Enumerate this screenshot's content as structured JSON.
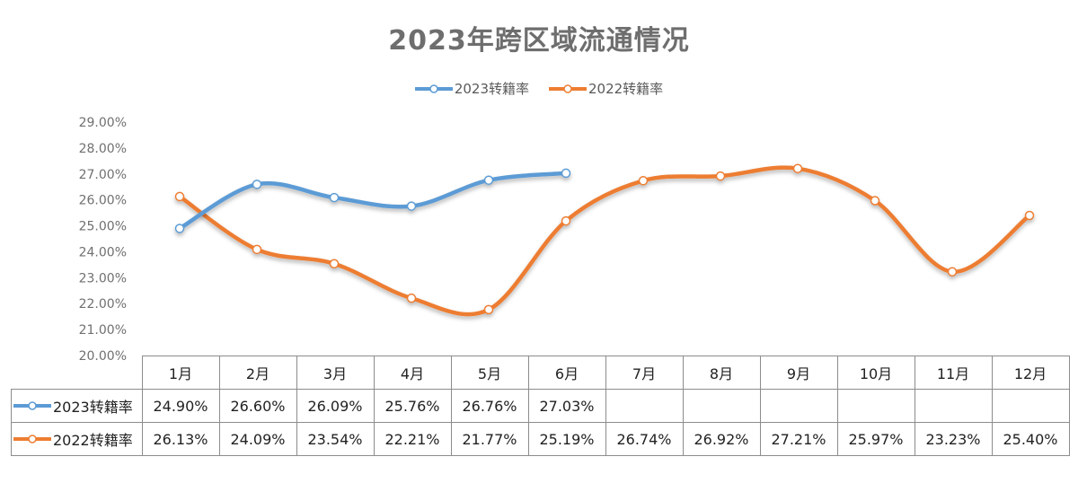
{
  "chart_data": {
    "type": "line",
    "title": "2023年跨区域流通情况",
    "categories": [
      "1月",
      "2月",
      "3月",
      "4月",
      "5月",
      "6月",
      "7月",
      "8月",
      "9月",
      "10月",
      "11月",
      "12月"
    ],
    "series": [
      {
        "name": "2023转籍率",
        "color": "#5b9bd5",
        "values": [
          24.9,
          26.6,
          26.09,
          25.76,
          26.76,
          27.03,
          null,
          null,
          null,
          null,
          null,
          null
        ],
        "labels": [
          "24.90%",
          "26.60%",
          "26.09%",
          "25.76%",
          "26.76%",
          "27.03%",
          "",
          "",
          "",
          "",
          "",
          ""
        ]
      },
      {
        "name": "2022转籍率",
        "color": "#ed7d31",
        "values": [
          26.13,
          24.09,
          23.54,
          22.21,
          21.77,
          25.19,
          26.74,
          26.92,
          27.21,
          25.97,
          23.23,
          25.4
        ],
        "labels": [
          "26.13%",
          "24.09%",
          "23.54%",
          "22.21%",
          "21.77%",
          "25.19%",
          "26.74%",
          "26.92%",
          "27.21%",
          "25.97%",
          "23.23%",
          "25.40%"
        ]
      }
    ],
    "ylim": [
      20,
      29
    ],
    "yticks": [
      "20.00%",
      "21.00%",
      "22.00%",
      "23.00%",
      "24.00%",
      "25.00%",
      "26.00%",
      "27.00%",
      "28.00%",
      "29.00%"
    ],
    "legend_position": "top",
    "smooth": true,
    "grid": false,
    "data_table": true
  }
}
